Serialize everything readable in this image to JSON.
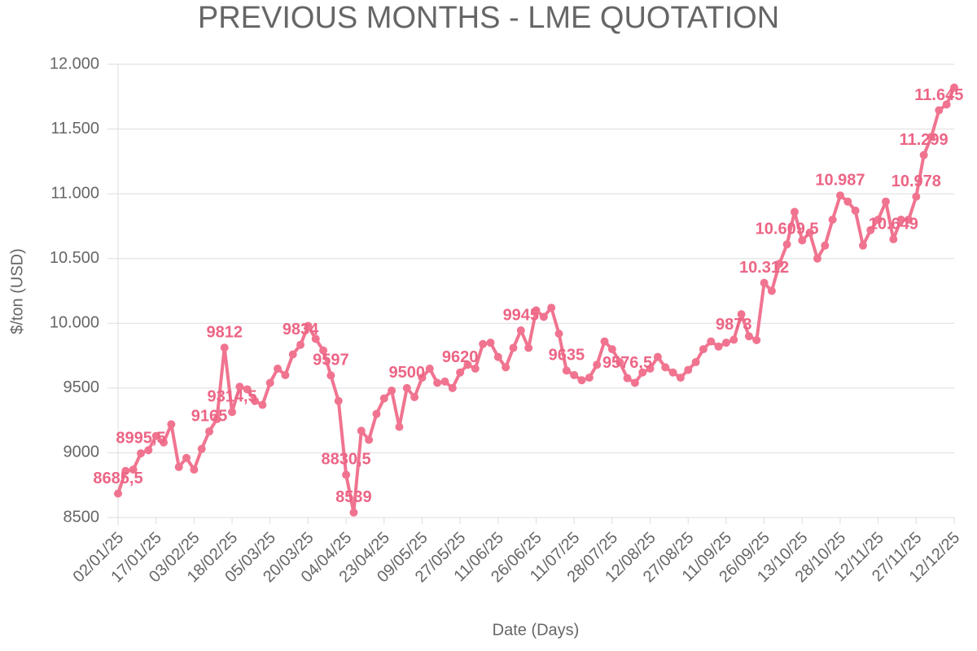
{
  "chart_data": {
    "type": "line",
    "title": "PREVIOUS MONTHS - LME QUOTATION",
    "x_label": "Date (Days)",
    "y_label": "$/ton (USD)",
    "color": "#f07490",
    "label_color": "#ec6585",
    "grid": true,
    "ylim": [
      8500,
      12000
    ],
    "yticks": [
      8500,
      9000,
      9500,
      {
        "value": 10000,
        "label": "10.000"
      },
      {
        "value": 10500,
        "label": "10.500"
      },
      {
        "value": 11000,
        "label": "11.000"
      },
      {
        "value": 11500,
        "label": "11.500"
      },
      {
        "value": 12000,
        "label": "12.000"
      }
    ],
    "categories": [
      "02/01/25",
      null,
      null,
      null,
      null,
      "17/01/25",
      null,
      null,
      null,
      null,
      "03/02/25",
      null,
      null,
      null,
      null,
      "18/02/25",
      null,
      null,
      null,
      null,
      "05/03/25",
      null,
      null,
      null,
      null,
      "20/03/25",
      null,
      null,
      null,
      null,
      "04/04/25",
      null,
      null,
      null,
      null,
      "23/04/25",
      null,
      null,
      null,
      null,
      "09/05/25",
      null,
      null,
      null,
      null,
      "27/05/25",
      null,
      null,
      null,
      null,
      "11/06/25",
      null,
      null,
      null,
      null,
      "26/06/25",
      null,
      null,
      null,
      null,
      "11/07/25",
      null,
      null,
      null,
      null,
      "28/07/25",
      null,
      null,
      null,
      null,
      "12/08/25",
      null,
      null,
      null,
      null,
      "27/08/25",
      null,
      null,
      null,
      null,
      "11/09/25",
      null,
      null,
      null,
      null,
      "26/09/25",
      null,
      null,
      null,
      null,
      "13/10/25",
      null,
      null,
      null,
      null,
      "28/10/25",
      null,
      null,
      null,
      null,
      "12/11/25",
      null,
      null,
      null,
      null,
      "27/11/25",
      null,
      null,
      null,
      null,
      "12/12/25"
    ],
    "values": [
      8685.5,
      8860,
      8870,
      8995.5,
      9020,
      9130,
      9080,
      9220,
      8890,
      8960,
      8870,
      9030,
      9165,
      9260,
      9812,
      9314.5,
      9510,
      9490,
      9400,
      9370,
      9540,
      9650,
      9600,
      9760,
      9834,
      9980,
      9880,
      9790,
      9597,
      9400,
      8830.5,
      8539,
      9170,
      9100,
      9300,
      9420,
      9480,
      9200,
      9500,
      9430,
      9580,
      9650,
      9540,
      9550,
      9500,
      9620,
      9680,
      9650,
      9840,
      9850,
      9740,
      9660,
      9810,
      9945,
      9810,
      10100,
      10050,
      10120,
      9920,
      9635,
      9600,
      9560,
      9580,
      9680,
      9860,
      9800,
      9700,
      9576.5,
      9540,
      9620,
      9650,
      9740,
      9660,
      9620,
      9580,
      9640,
      9700,
      9800,
      9860,
      9820,
      9850,
      9873,
      10070,
      9900,
      9870,
      10312,
      10250,
      10460,
      10609.5,
      10860,
      10640,
      10700,
      10500,
      10600,
      10800,
      10987,
      10940,
      10870,
      10600,
      10720,
      10800,
      10940,
      10649,
      10800,
      10800,
      10978,
      11299,
      11440,
      11645,
      11690,
      11820
    ],
    "value_labels": [
      "8685,5",
      null,
      null,
      "8995,5",
      null,
      null,
      null,
      null,
      null,
      null,
      null,
      null,
      "9165",
      null,
      "9812",
      "9314,5",
      null,
      null,
      null,
      null,
      null,
      null,
      null,
      null,
      "9834",
      null,
      null,
      null,
      "9597",
      null,
      "8830,5",
      "8539",
      null,
      null,
      null,
      null,
      null,
      null,
      "9500",
      null,
      null,
      null,
      null,
      null,
      null,
      "9620",
      null,
      null,
      null,
      null,
      null,
      null,
      null,
      "9945",
      null,
      null,
      null,
      null,
      null,
      "9635",
      null,
      null,
      null,
      null,
      null,
      null,
      null,
      "9576,5",
      null,
      null,
      null,
      null,
      null,
      null,
      null,
      null,
      null,
      null,
      null,
      null,
      null,
      "9873",
      null,
      null,
      null,
      "10.312",
      null,
      null,
      "10.609,5",
      null,
      null,
      null,
      null,
      null,
      null,
      "10.987",
      null,
      null,
      null,
      null,
      null,
      null,
      "10.649",
      null,
      null,
      "10.978",
      "11.299",
      null,
      "11.645",
      null,
      null
    ]
  }
}
